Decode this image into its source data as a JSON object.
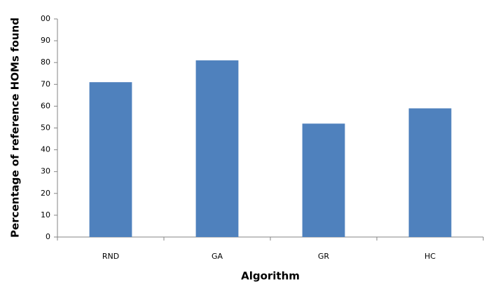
{
  "chart_data": {
    "type": "bar",
    "x_label": "Algorithm",
    "y_label": "Percentage of reference HOMs found",
    "categories": [
      "RND",
      "GA",
      "GR",
      "HC"
    ],
    "values": [
      71,
      81,
      52,
      59
    ],
    "color": "#4f81bd",
    "ylim": [
      0,
      100
    ],
    "yticks": [
      0,
      10,
      20,
      30,
      40,
      50,
      60,
      70,
      80,
      90,
      {
        "value": 100,
        "label": "00"
      }
    ],
    "grid": false
  }
}
